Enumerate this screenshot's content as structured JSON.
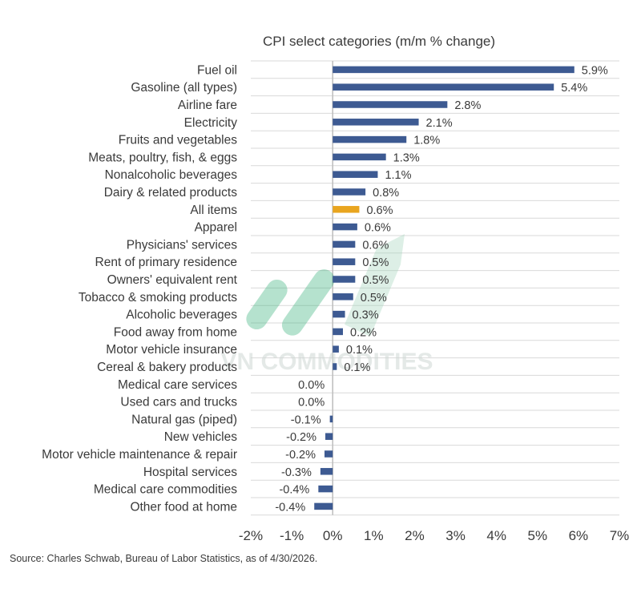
{
  "chart_data": {
    "type": "bar",
    "orientation": "horizontal",
    "title": "CPI select categories (m/m % change)",
    "categories": [
      "Fuel oil",
      "Gasoline (all types)",
      "Airline fare",
      "Electricity",
      "Fruits and vegetables",
      "Meats, poultry, fish, & eggs",
      "Nonalcoholic beverages",
      "Dairy & related products",
      "All items",
      "Apparel",
      "Physicians' services",
      "Rent of primary residence",
      "Owners' equivalent rent",
      "Tobacco & smoking products",
      "Alcoholic beverages",
      "Food away from home",
      "Motor vehicle insurance",
      "Cereal & bakery products",
      "Medical care services",
      "Used cars and trucks",
      "Natural gas (piped)",
      "New vehicles",
      "Motor vehicle maintenance & repair",
      "Hospital services",
      "Medical care commodities",
      "Other food at home"
    ],
    "values": [
      5.9,
      5.4,
      2.8,
      2.1,
      1.8,
      1.3,
      1.1,
      0.8,
      0.6,
      0.6,
      0.6,
      0.5,
      0.5,
      0.5,
      0.3,
      0.2,
      0.1,
      0.1,
      0.0,
      0.0,
      -0.1,
      -0.2,
      -0.2,
      -0.3,
      -0.4,
      -0.4
    ],
    "plot_values": [
      5.9,
      5.4,
      2.8,
      2.1,
      1.8,
      1.3,
      1.1,
      0.8,
      0.65,
      0.6,
      0.55,
      0.55,
      0.55,
      0.5,
      0.3,
      0.25,
      0.15,
      0.1,
      0.0,
      0.0,
      -0.07,
      -0.18,
      -0.2,
      -0.3,
      -0.35,
      -0.45
    ],
    "value_labels": [
      "5.9%",
      "5.4%",
      "2.8%",
      "2.1%",
      "1.8%",
      "1.3%",
      "1.1%",
      "0.8%",
      "0.6%",
      "0.6%",
      "0.6%",
      "0.5%",
      "0.5%",
      "0.5%",
      "0.3%",
      "0.2%",
      "0.1%",
      "0.1%",
      "0.0%",
      "0.0%",
      "-0.1%",
      "-0.2%",
      "-0.2%",
      "-0.3%",
      "-0.4%",
      "-0.4%"
    ],
    "highlight_category": "All items",
    "colors": {
      "bar": "#3d5a92",
      "highlight": "#e9a51f",
      "grid": "#d9d9d9",
      "zero_line": "#bdbdbd"
    },
    "xlim": [
      -2,
      7
    ],
    "xticks": [
      -2,
      -1,
      0,
      1,
      2,
      3,
      4,
      5,
      6,
      7
    ],
    "xtick_labels": [
      "-2%",
      "-1%",
      "0%",
      "1%",
      "2%",
      "3%",
      "4%",
      "5%",
      "6%",
      "7%"
    ],
    "grid": "horizontal row separators",
    "legend": "none"
  },
  "source_note": "Source: Charles Schwab, Bureau of Labor Statistics, as of  4/30/2026.",
  "watermark": {
    "text": "VN COMMODITIES",
    "colors": [
      "#2fae74",
      "#9fd4b8"
    ]
  }
}
